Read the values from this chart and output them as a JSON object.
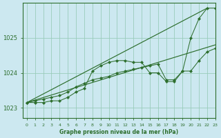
{
  "title": "Graphe pression niveau de la mer (hPa)",
  "background_color": "#cce8f0",
  "grid_color": "#99ccbb",
  "line_color": "#2d6e2d",
  "xlim": [
    -0.5,
    23
  ],
  "ylim": [
    1022.7,
    1026.0
  ],
  "yticks": [
    1023,
    1024,
    1025
  ],
  "xticks": [
    0,
    1,
    2,
    3,
    4,
    5,
    6,
    7,
    8,
    9,
    10,
    11,
    12,
    13,
    14,
    15,
    16,
    17,
    18,
    19,
    20,
    21,
    22,
    23
  ],
  "series": {
    "line_upper_trend": {
      "x": [
        0,
        22
      ],
      "y": [
        1023.15,
        1025.85
      ]
    },
    "line_lower_trend": {
      "x": [
        0,
        23
      ],
      "y": [
        1023.15,
        1024.8
      ]
    },
    "line_main": {
      "x": [
        0,
        1,
        2,
        3,
        4,
        5,
        6,
        7,
        8,
        9,
        10,
        11,
        12,
        13,
        14,
        15,
        16,
        17,
        18,
        19,
        20,
        21,
        22,
        23
      ],
      "y": [
        1023.15,
        1023.15,
        1023.15,
        1023.2,
        1023.2,
        1023.3,
        1023.45,
        1023.55,
        1024.05,
        1024.2,
        1024.3,
        1024.35,
        1024.35,
        1024.3,
        1024.3,
        1024.0,
        1024.0,
        1023.75,
        1023.75,
        1024.05,
        1025.0,
        1025.55,
        1025.85,
        1025.85
      ]
    },
    "line_secondary": {
      "x": [
        0,
        1,
        2,
        3,
        4,
        5,
        6,
        7,
        8,
        9,
        10,
        11,
        12,
        13,
        14,
        15,
        16,
        17,
        18,
        19,
        20,
        21,
        22,
        23
      ],
      "y": [
        1023.15,
        1023.2,
        1023.25,
        1023.3,
        1023.35,
        1023.45,
        1023.6,
        1023.7,
        1023.8,
        1023.85,
        1023.9,
        1024.0,
        1024.05,
        1024.1,
        1024.15,
        1024.2,
        1024.25,
        1023.8,
        1023.8,
        1024.05,
        1024.05,
        1024.35,
        1024.6,
        1024.7
      ]
    }
  }
}
